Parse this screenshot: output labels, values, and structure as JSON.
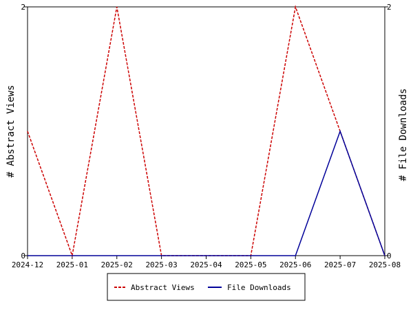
{
  "chart_data": {
    "type": "line",
    "title": "",
    "categories": [
      "2024-12",
      "2025-01",
      "2025-02",
      "2025-03",
      "2025-04",
      "2025-05",
      "2025-06",
      "2025-07",
      "2025-08"
    ],
    "y_left": {
      "label": "# Abstract Views",
      "ticks": [
        "0",
        "2"
      ],
      "ylim": [
        0,
        2
      ]
    },
    "y_right": {
      "label": "# File Downloads",
      "ticks": [
        "0",
        "2"
      ],
      "ylim": [
        0,
        2
      ]
    },
    "series": [
      {
        "name": "Abstract Views",
        "axis": "left",
        "color": "#cc0000",
        "line_style": "dashed",
        "values": [
          1,
          0,
          2,
          0,
          0,
          0,
          2,
          1,
          0
        ]
      },
      {
        "name": "File Downloads",
        "axis": "right",
        "color": "#000099",
        "line_style": "solid",
        "values": [
          0,
          0,
          0,
          0,
          0,
          0,
          0,
          1,
          0
        ]
      }
    ],
    "legend": {
      "placement": "bottom-center"
    },
    "grid": false
  }
}
